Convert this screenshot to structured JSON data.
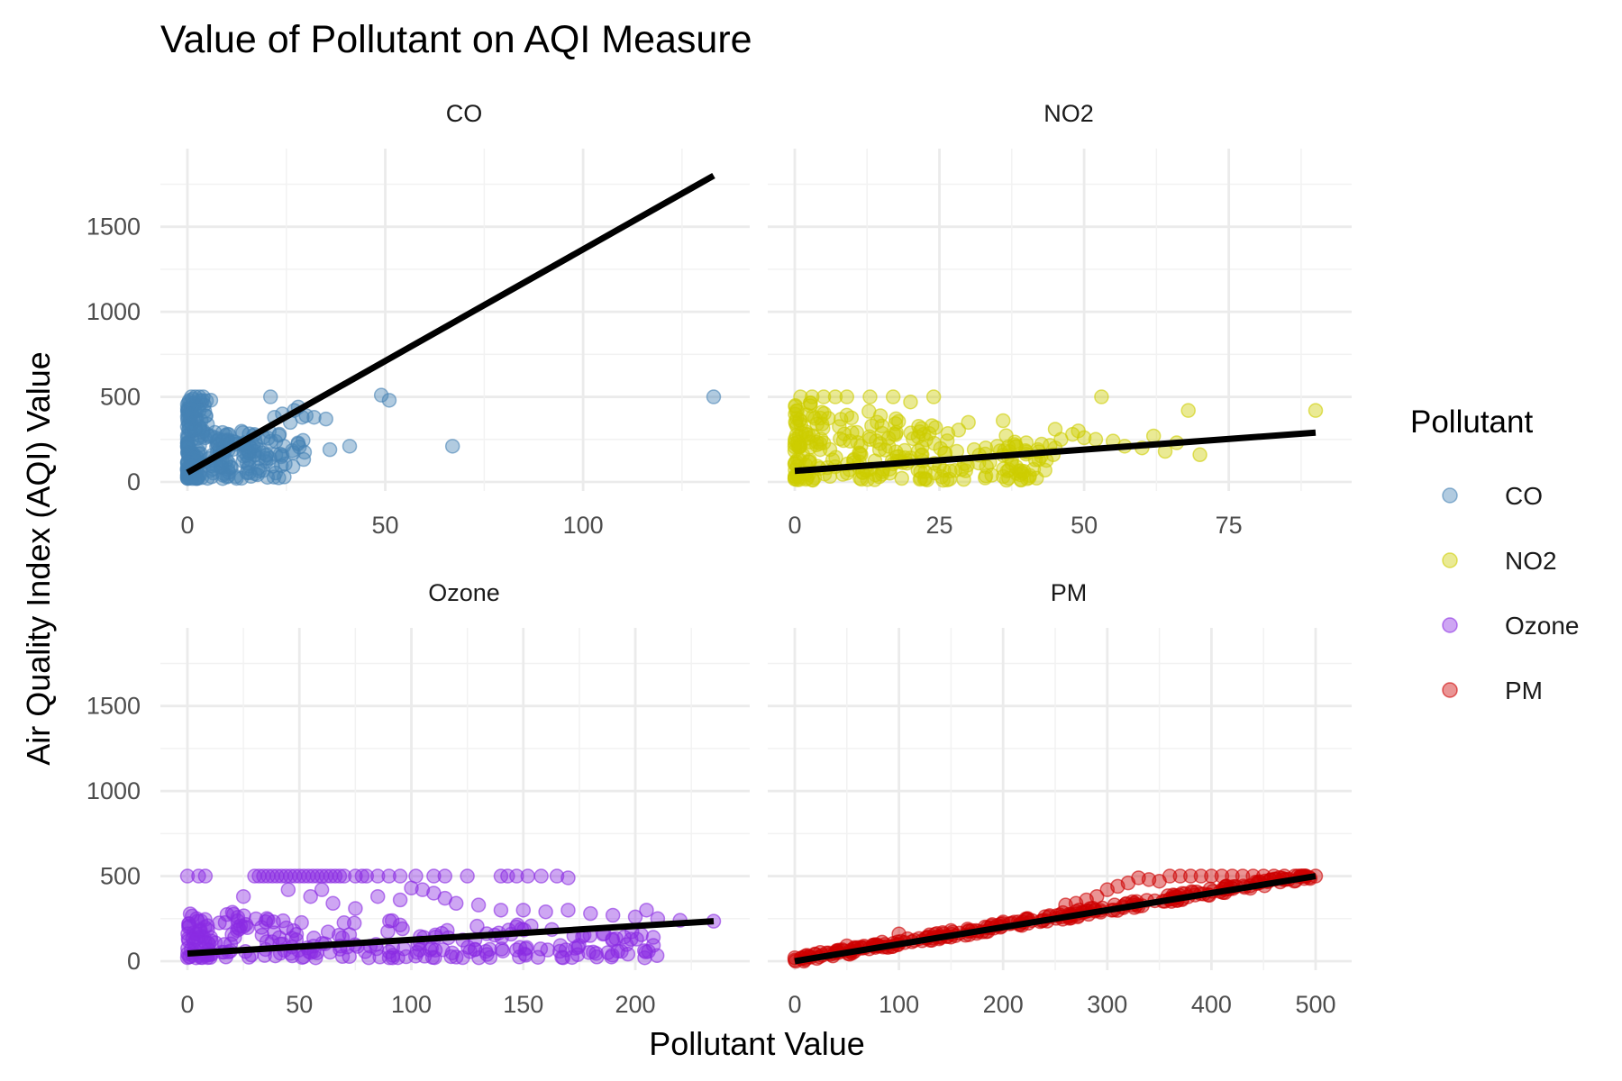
{
  "chart_data": {
    "type": "scatter",
    "title": "Value of Pollutant on AQI Measure",
    "xlabel": "Pollutant Value",
    "ylabel": "Air Quality Index (AQI) Value",
    "grid": true,
    "legend": {
      "title": "Pollutant",
      "position": "right",
      "entries": [
        {
          "label": "CO",
          "color": "#4682b4"
        },
        {
          "label": "NO2",
          "color": "#cdcd00"
        },
        {
          "label": "Ozone",
          "color": "#8a2be2"
        },
        {
          "label": "PM",
          "color": "#cd0000"
        }
      ]
    },
    "ylim": [
      0,
      1800
    ],
    "yticks": [
      0,
      500,
      1000,
      1500
    ],
    "panels": [
      {
        "name": "CO",
        "color": "#4682b4",
        "xlim": [
          0,
          133
        ],
        "xticks": [
          0,
          50,
          100
        ],
        "fit": {
          "x0": 0,
          "y0": 55,
          "x1": 133,
          "y1": 1800
        },
        "cluster": {
          "x_max": 30,
          "y_min": 20,
          "y_max": 500
        },
        "points": [
          [
            1,
            500
          ],
          [
            2,
            500
          ],
          [
            3,
            500
          ],
          [
            4,
            500
          ],
          [
            0.5,
            480
          ],
          [
            1.5,
            460
          ],
          [
            2.5,
            430
          ],
          [
            3,
            420
          ],
          [
            1,
            400
          ],
          [
            2,
            380
          ],
          [
            3.5,
            360
          ],
          [
            1,
            340
          ],
          [
            2,
            310
          ],
          [
            4,
            300
          ],
          [
            5,
            280
          ],
          [
            6,
            270
          ],
          [
            7,
            260
          ],
          [
            8,
            250
          ],
          [
            9,
            245
          ],
          [
            10,
            240
          ],
          [
            11,
            230
          ],
          [
            12,
            235
          ],
          [
            13,
            225
          ],
          [
            14,
            220
          ],
          [
            15,
            210
          ],
          [
            16,
            200
          ],
          [
            17,
            180
          ],
          [
            18,
            190
          ],
          [
            19,
            170
          ],
          [
            20,
            160
          ],
          [
            21,
            500
          ],
          [
            22,
            380
          ],
          [
            24,
            400
          ],
          [
            26,
            350
          ],
          [
            27,
            420
          ],
          [
            28,
            440
          ],
          [
            29,
            380
          ],
          [
            30,
            390
          ],
          [
            32,
            380
          ],
          [
            35,
            370
          ],
          [
            36,
            190
          ],
          [
            41,
            210
          ],
          [
            49,
            510
          ],
          [
            51,
            480
          ],
          [
            67,
            210
          ],
          [
            133,
            500
          ]
        ]
      },
      {
        "name": "NO2",
        "color": "#cdcd00",
        "xlim": [
          0,
          90
        ],
        "xticks": [
          0,
          25,
          50,
          75
        ],
        "fit": {
          "x0": 0,
          "y0": 65,
          "x1": 90,
          "y1": 290
        },
        "cluster": {
          "x_max": 45,
          "y_min": 10,
          "y_max": 500
        },
        "points": [
          [
            1,
            500
          ],
          [
            3,
            500
          ],
          [
            5,
            500
          ],
          [
            7,
            500
          ],
          [
            9,
            500
          ],
          [
            13,
            500
          ],
          [
            17,
            500
          ],
          [
            20,
            470
          ],
          [
            24,
            500
          ],
          [
            30,
            350
          ],
          [
            36,
            360
          ],
          [
            40,
            230
          ],
          [
            45,
            310
          ],
          [
            46,
            250
          ],
          [
            48,
            280
          ],
          [
            49,
            300
          ],
          [
            50,
            260
          ],
          [
            52,
            250
          ],
          [
            53,
            500
          ],
          [
            55,
            240
          ],
          [
            57,
            210
          ],
          [
            60,
            200
          ],
          [
            62,
            270
          ],
          [
            64,
            180
          ],
          [
            66,
            230
          ],
          [
            68,
            420
          ],
          [
            70,
            160
          ],
          [
            90,
            420
          ],
          [
            45,
            200
          ],
          [
            42,
            190
          ],
          [
            38,
            220
          ],
          [
            35,
            210
          ],
          [
            33,
            200
          ],
          [
            31,
            190
          ],
          [
            28,
            180
          ],
          [
            26,
            170
          ],
          [
            22,
            160
          ],
          [
            18,
            150
          ]
        ]
      },
      {
        "name": "Ozone",
        "color": "#8a2be2",
        "xlim": [
          0,
          235
        ],
        "xticks": [
          0,
          50,
          100,
          150,
          200
        ],
        "fit": {
          "x0": 0,
          "y0": 45,
          "x1": 235,
          "y1": 235
        },
        "cluster": {
          "x_max": 210,
          "y_min": 20,
          "y_max": 300
        },
        "points": [
          [
            0,
            500
          ],
          [
            5,
            500
          ],
          [
            8,
            500
          ],
          [
            30,
            500
          ],
          [
            32,
            500
          ],
          [
            34,
            500
          ],
          [
            36,
            500
          ],
          [
            38,
            500
          ],
          [
            40,
            500
          ],
          [
            42,
            500
          ],
          [
            44,
            500
          ],
          [
            46,
            500
          ],
          [
            48,
            500
          ],
          [
            50,
            500
          ],
          [
            52,
            500
          ],
          [
            54,
            500
          ],
          [
            56,
            500
          ],
          [
            58,
            500
          ],
          [
            60,
            500
          ],
          [
            62,
            500
          ],
          [
            64,
            500
          ],
          [
            66,
            500
          ],
          [
            68,
            500
          ],
          [
            70,
            500
          ],
          [
            75,
            500
          ],
          [
            78,
            500
          ],
          [
            80,
            500
          ],
          [
            85,
            500
          ],
          [
            90,
            500
          ],
          [
            95,
            500
          ],
          [
            102,
            500
          ],
          [
            110,
            500
          ],
          [
            115,
            500
          ],
          [
            125,
            500
          ],
          [
            140,
            500
          ],
          [
            143,
            500
          ],
          [
            147,
            500
          ],
          [
            152,
            500
          ],
          [
            158,
            500
          ],
          [
            165,
            500
          ],
          [
            170,
            490
          ],
          [
            100,
            430
          ],
          [
            105,
            420
          ],
          [
            110,
            400
          ],
          [
            115,
            370
          ],
          [
            120,
            340
          ],
          [
            130,
            330
          ],
          [
            140,
            300
          ],
          [
            150,
            300
          ],
          [
            160,
            290
          ],
          [
            170,
            300
          ],
          [
            180,
            280
          ],
          [
            190,
            270
          ],
          [
            200,
            260
          ],
          [
            205,
            300
          ],
          [
            210,
            250
          ],
          [
            220,
            240
          ],
          [
            235,
            235
          ],
          [
            55,
            380
          ],
          [
            65,
            340
          ],
          [
            75,
            310
          ],
          [
            85,
            380
          ],
          [
            95,
            360
          ],
          [
            25,
            380
          ],
          [
            45,
            420
          ],
          [
            60,
            420
          ]
        ]
      },
      {
        "name": "PM",
        "color": "#cd0000",
        "xlim": [
          0,
          500
        ],
        "xticks": [
          0,
          100,
          200,
          300,
          400,
          500
        ],
        "fit": {
          "x0": 0,
          "y0": 0,
          "x1": 500,
          "y1": 500
        },
        "cluster": {
          "x_max": 500,
          "y_min": 0,
          "y_max": 500
        },
        "points": [
          [
            330,
            490
          ],
          [
            350,
            470
          ],
          [
            360,
            500
          ],
          [
            370,
            500
          ],
          [
            380,
            500
          ],
          [
            390,
            500
          ],
          [
            400,
            500
          ],
          [
            410,
            500
          ],
          [
            420,
            500
          ],
          [
            430,
            500
          ],
          [
            440,
            500
          ],
          [
            450,
            500
          ],
          [
            460,
            500
          ],
          [
            470,
            500
          ],
          [
            480,
            500
          ],
          [
            490,
            500
          ],
          [
            500,
            500
          ],
          [
            300,
            420
          ],
          [
            310,
            440
          ],
          [
            320,
            460
          ],
          [
            340,
            480
          ],
          [
            260,
            330
          ],
          [
            270,
            340
          ],
          [
            280,
            360
          ],
          [
            290,
            380
          ],
          [
            200,
            230
          ],
          [
            150,
            180
          ],
          [
            100,
            160
          ],
          [
            50,
            90
          ],
          [
            20,
            40
          ],
          [
            10,
            30
          ],
          [
            0,
            20
          ]
        ]
      }
    ]
  }
}
